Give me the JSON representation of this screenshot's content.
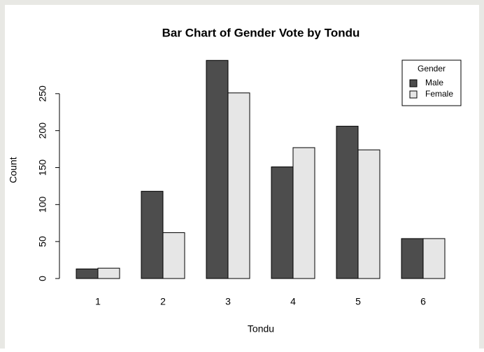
{
  "chart_data": {
    "type": "bar",
    "title": "Bar Chart of Gender Vote by Tondu",
    "x_label": "Tondu",
    "y_label": "Count",
    "categories": [
      "1",
      "2",
      "3",
      "4",
      "5",
      "6"
    ],
    "series": [
      {
        "name": "Male",
        "color": "#4d4d4d",
        "values": [
          13,
          118,
          295,
          151,
          206,
          54
        ]
      },
      {
        "name": "Female",
        "color": "#e6e6e6",
        "values": [
          14,
          62,
          251,
          177,
          174,
          54
        ]
      }
    ],
    "legend_title": "Gender",
    "legend": "topright",
    "ylim": [
      0,
      300
    ],
    "yticks": [
      0,
      50,
      100,
      150,
      200,
      250
    ]
  }
}
